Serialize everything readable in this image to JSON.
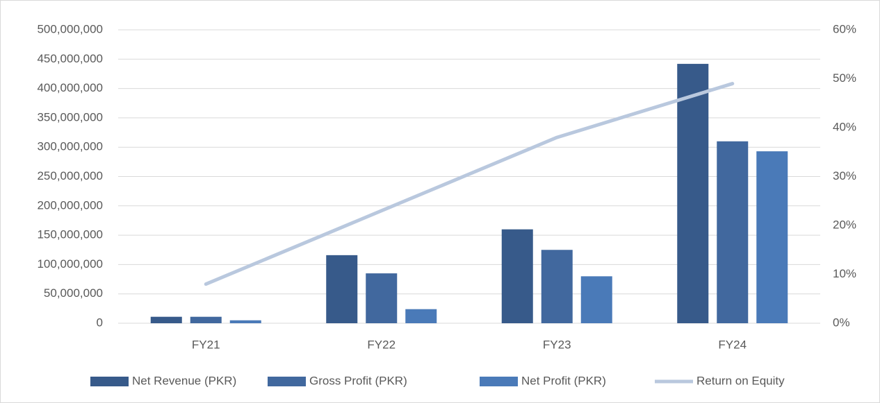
{
  "chart_data": {
    "type": "bar",
    "categories": [
      "FY21",
      "FY22",
      "FY23",
      "FY24"
    ],
    "series": [
      {
        "name": "Net Revenue (PKR)",
        "color": "#375a8a",
        "values": [
          11000000,
          116000000,
          160000000,
          442000000
        ]
      },
      {
        "name": "Gross Profit (PKR)",
        "color": "#41689e",
        "values": [
          11000000,
          85000000,
          125000000,
          310000000
        ]
      },
      {
        "name": "Net Profit (PKR)",
        "color": "#4a7ab8",
        "values": [
          5000000,
          24000000,
          80000000,
          293000000
        ]
      },
      {
        "name": "Return on Equity",
        "color": "#b9c8de",
        "type": "line",
        "axis": "y2",
        "values": [
          8,
          23,
          38,
          49
        ]
      }
    ],
    "ylim": [
      0,
      500000000
    ],
    "yticks": [
      0,
      {
        "value": 50000000,
        "label": "50,000,000"
      },
      {
        "value": 100000000,
        "label": "100,000,000"
      },
      {
        "value": 150000000,
        "label": "150,000,000"
      },
      {
        "value": 200000000,
        "label": "200,000,000"
      },
      {
        "value": 250000000,
        "label": "250,000,000"
      },
      {
        "value": 300000000,
        "label": "300,000,000"
      },
      {
        "value": 350000000,
        "label": "350,000,000"
      },
      {
        "value": 400000000,
        "label": "400,000,000"
      },
      {
        "value": 450000000,
        "label": "450,000,000"
      },
      {
        "value": 500000000,
        "label": "500,000,000"
      }
    ],
    "y2lim": [
      0,
      60
    ],
    "y2ticks": [
      {
        "value": 0,
        "label": "0%"
      },
      {
        "value": 10,
        "label": "10%"
      },
      {
        "value": 20,
        "label": "20%"
      },
      {
        "value": 30,
        "label": "30%"
      },
      {
        "value": 40,
        "label": "40%"
      },
      {
        "value": 50,
        "label": "50%"
      },
      {
        "value": 60,
        "label": "60%"
      }
    ],
    "grid": true,
    "legend": "bottom"
  }
}
